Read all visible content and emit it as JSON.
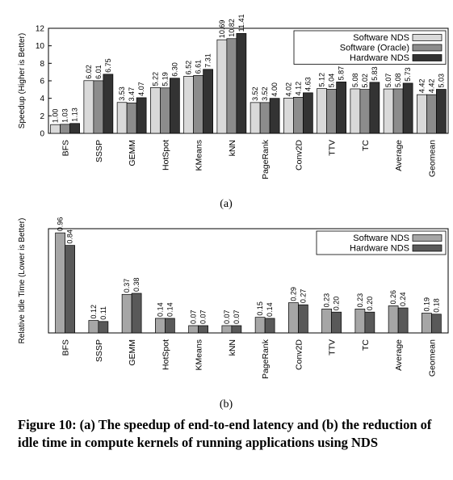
{
  "figure": {
    "caption": "Figure 10: (a) The speedup of end-to-end latency and (b) the reduction of idle time in compute kernels of running applications using NDS",
    "sublabels": [
      "(a)",
      "(b)"
    ]
  },
  "chart_data": [
    {
      "type": "bar",
      "title": "",
      "xlabel": "",
      "ylabel": "Speedup (Higher is Better)",
      "ylim": [
        0,
        12
      ],
      "yticks": [
        0,
        2,
        4,
        6,
        8,
        10,
        12
      ],
      "grid": false,
      "legend": "top-right",
      "categories": [
        "BFS",
        "SSSP",
        "GEMM",
        "HotSpot",
        "KMeans",
        "kNN",
        "PageRank",
        "Conv2D",
        "TTV",
        "TC",
        "Average",
        "Geomean"
      ],
      "series": [
        {
          "name": "Software NDS",
          "color": "#d9d9d9",
          "values": [
            1.0,
            6.02,
            3.53,
            5.22,
            6.52,
            10.69,
            3.52,
            4.02,
            5.12,
            5.08,
            5.07,
            4.42
          ]
        },
        {
          "name": "Software (Oracle)",
          "color": "#8c8c8c",
          "values": [
            1.03,
            6.01,
            3.47,
            5.19,
            6.61,
            10.82,
            3.52,
            4.12,
            5.04,
            5.02,
            5.08,
            4.42
          ]
        },
        {
          "name": "Hardware NDS",
          "color": "#333333",
          "values": [
            1.13,
            6.75,
            4.07,
            6.3,
            7.31,
            11.41,
            4.0,
            4.63,
            5.87,
            5.83,
            5.73,
            5.03
          ]
        }
      ]
    },
    {
      "type": "bar",
      "title": "",
      "xlabel": "",
      "ylabel": "Relative Idle Time (Lower is Better)",
      "ylim": [
        0,
        1
      ],
      "yticks": [],
      "grid": false,
      "legend": "top-right",
      "categories": [
        "BFS",
        "SSSP",
        "GEMM",
        "HotSpot",
        "KMeans",
        "kNN",
        "PageRank",
        "Conv2D",
        "TTV",
        "TC",
        "Average",
        "Geomean"
      ],
      "series": [
        {
          "name": "Software NDS",
          "color": "#a6a6a6",
          "values": [
            0.96,
            0.12,
            0.37,
            0.14,
            0.07,
            0.07,
            0.15,
            0.29,
            0.23,
            0.23,
            0.26,
            0.19
          ]
        },
        {
          "name": "Hardware NDS",
          "color": "#595959",
          "values": [
            0.84,
            0.11,
            0.38,
            0.14,
            0.07,
            0.07,
            0.14,
            0.27,
            0.2,
            0.2,
            0.24,
            0.18
          ]
        }
      ]
    }
  ]
}
